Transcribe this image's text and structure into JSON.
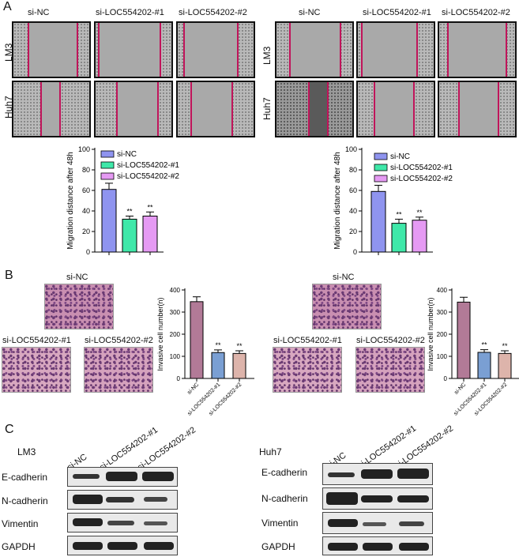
{
  "panels": {
    "a": "A",
    "b": "B",
    "c": "C"
  },
  "wound": {
    "columns": [
      "si-NC",
      "si-LOC554202-#1",
      "si-LOC554202-#2"
    ],
    "rows": [
      "LM3",
      "Huh7"
    ]
  },
  "transwell": {
    "top_label": "si-NC",
    "bottom_labels": [
      "si-LOC554202-#1",
      "si-LOC554202-#2"
    ]
  },
  "western": {
    "left_title": "LM3",
    "right_title": "Huh7",
    "lanes": [
      "si-NC",
      "si-LOC554202-#1",
      "si-LOC554202-#2"
    ],
    "proteins": [
      "E-cadherin",
      "N-cadherin",
      "Vimentin",
      "GAPDH"
    ]
  },
  "colors": {
    "siNC_migration": "#8f94ef",
    "si1_migration": "#3fe8a9",
    "si2_migration": "#e59af3",
    "siNC_invasion": "#b27a97",
    "si1_invasion": "#7a9fd3",
    "si2_invasion": "#ddb4ab",
    "edge": "#c0145a"
  },
  "chart_data": [
    {
      "type": "bar",
      "title": "",
      "ylabel": "Migration distance after 48h",
      "ylim": [
        0,
        100
      ],
      "yticks": [
        0,
        20,
        40,
        60,
        80,
        100
      ],
      "categories": [
        "si-NC",
        "si-LOC554202-#1",
        "si-LOC554202-#2"
      ],
      "values": [
        61,
        32,
        35
      ],
      "errors": [
        6,
        3,
        4
      ],
      "significance": [
        "",
        "**",
        "**"
      ],
      "legend": [
        "si-NC",
        "si-LOC554202-#1",
        "si-LOC554202-#2"
      ],
      "legend_position": "top-right"
    },
    {
      "type": "bar",
      "title": "",
      "ylabel": "Migration distance after 48h",
      "ylim": [
        0,
        100
      ],
      "yticks": [
        0,
        20,
        40,
        60,
        80,
        100
      ],
      "categories": [
        "si-NC",
        "si-LOC554202-#1",
        "si-LOC554202-#2"
      ],
      "values": [
        59,
        28,
        31
      ],
      "errors": [
        6,
        4,
        3
      ],
      "significance": [
        "",
        "**",
        "**"
      ],
      "legend": [
        "si-NC",
        "si-LOC554202-#1",
        "si-LOC554202-#2"
      ],
      "legend_position": "top-right"
    },
    {
      "type": "bar",
      "title": "",
      "ylabel": "Invasive cell number(n)",
      "ylim": [
        0,
        400
      ],
      "yticks": [
        0,
        100,
        200,
        300,
        400
      ],
      "categories": [
        "si-NC",
        "si-LOC554202-#1",
        "si-LOC554202-#2"
      ],
      "values": [
        347,
        117,
        113
      ],
      "errors": [
        22,
        12,
        12
      ],
      "significance": [
        "",
        "**",
        "**"
      ]
    },
    {
      "type": "bar",
      "title": "",
      "ylabel": "Invasive cell number(n)",
      "ylim": [
        0,
        400
      ],
      "yticks": [
        0,
        100,
        200,
        300,
        400
      ],
      "categories": [
        "si-NC",
        "si-LOC554202-#1",
        "si-LOC554202-#2"
      ],
      "values": [
        345,
        118,
        113
      ],
      "errors": [
        22,
        12,
        12
      ],
      "significance": [
        "",
        "**",
        "**"
      ]
    }
  ]
}
